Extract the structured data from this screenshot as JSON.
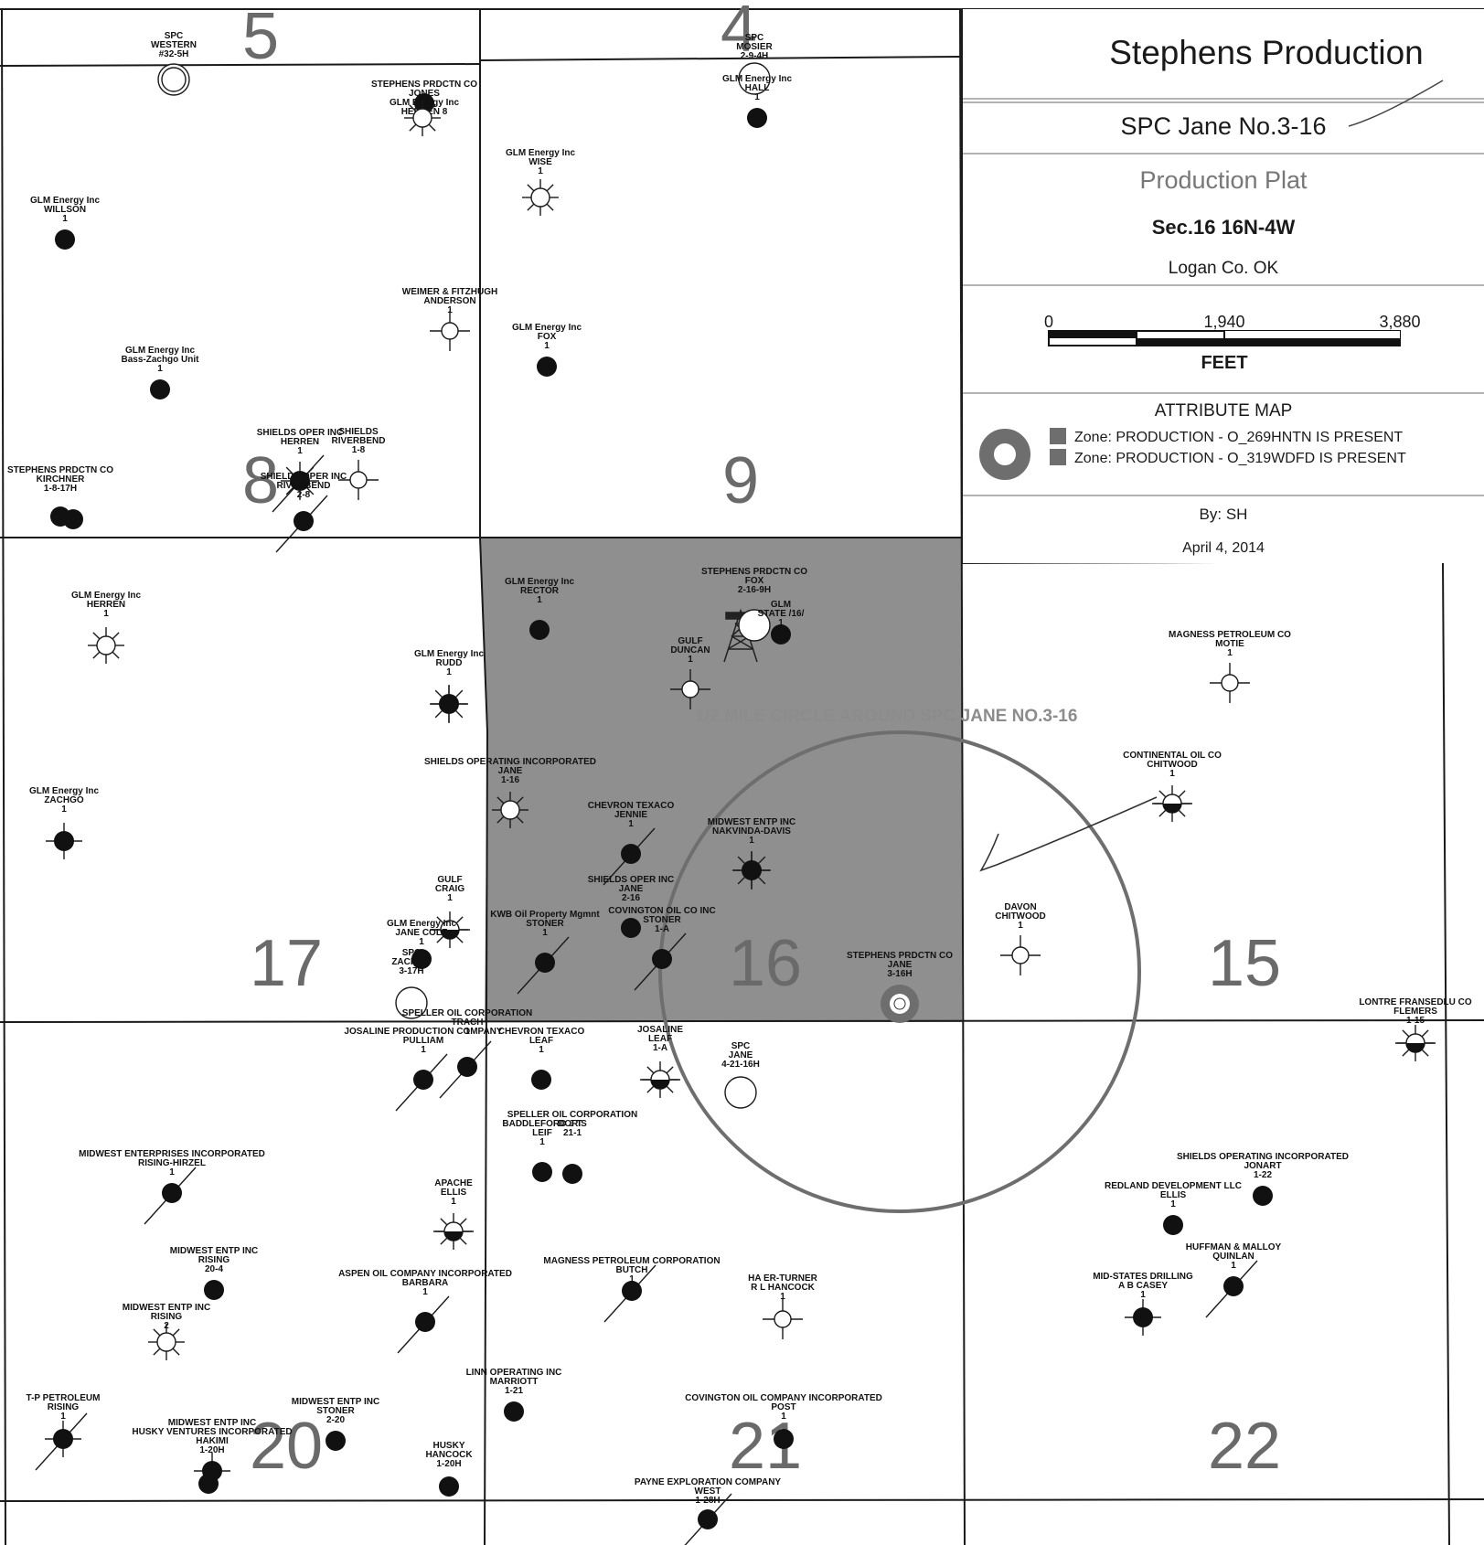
{
  "title_block": {
    "company": "Stephens Production",
    "well": "SPC Jane No.3-16",
    "plat_type": "Production Plat",
    "location": "Sec.16 16N-4W",
    "county": "Logan Co. OK",
    "scale": {
      "tick_0": "0",
      "tick_mid": "1,940",
      "tick_max": "3,880",
      "units": "FEET"
    },
    "legend_title": "ATTRIBUTE MAP",
    "legend_items": [
      "Zone: PRODUCTION - O_269HNTN IS PRESENT",
      "Zone: PRODUCTION - O_319WDFD IS PRESENT"
    ],
    "author": "By: SH",
    "date": "April 4, 2014"
  },
  "circle_label": "1/2 MILE CIRCLE AROUND SPC JANE NO.3-16",
  "sections": [
    "5",
    "4",
    "8",
    "9",
    "17",
    "16",
    "15",
    "20",
    "21",
    "22"
  ],
  "colors": {
    "highlight": "#8f8f8f",
    "ring": "#6e6e6e",
    "line": "#1a1a1a"
  },
  "wells": [
    {
      "label": "SPC|WESTERN|#32-5H",
      "symbol": "location"
    },
    {
      "label": "STEPHENS PRDCTN CO|JONES|GLM Energy Inc|HERREN 8",
      "symbol": "oil"
    },
    {
      "label": "",
      "symbol": "dry"
    },
    {
      "label": "SPC|MOSIER|2-9-4H",
      "symbol": "location"
    },
    {
      "label": "GLM Energy Inc|HALL|1",
      "symbol": "oil"
    },
    {
      "label": "GLM Energy Inc|WISE|1",
      "symbol": "dry"
    },
    {
      "label": "GLM Energy Inc|WILLSON|1",
      "symbol": "oil"
    },
    {
      "label": "WEIMER & FITZHUGH|ANDERSON|1",
      "symbol": "plugged"
    },
    {
      "label": "GLM Energy Inc|FOX|1",
      "symbol": "oil"
    },
    {
      "label": "GLM Energy Inc|Bass-Zachgo Unit|1",
      "symbol": "oil"
    },
    {
      "label": "SHIELDS OPER INC|HERREN|1",
      "symbol": "oilgas"
    },
    {
      "label": "SHIELDS|RIVERBEND|1-8",
      "symbol": "plugged"
    },
    {
      "label": "SHIELDS OPER INC|RIVERBEND|2-8",
      "symbol": "oil"
    },
    {
      "label": "STEPHENS PRDCTN CO|KIRCHNER|1-8-17H",
      "symbol": "oil"
    },
    {
      "label": "",
      "symbol": "oil"
    },
    {
      "label": "GLM Energy Inc|RECTOR|1",
      "symbol": "oil"
    },
    {
      "label": "STEPHENS PRDCTN CO|FOX|2-16-9H",
      "symbol": "location"
    },
    {
      "label": "GLM|STATE /16/|1",
      "symbol": "oil"
    },
    {
      "label": "GULF|DUNCAN|1",
      "symbol": "plugged"
    },
    {
      "label": "GLM Energy Inc|HERREN|1",
      "symbol": "dry"
    },
    {
      "label": "GLM Energy Inc|RUDD|1",
      "symbol": "oilgas"
    },
    {
      "label": "MAGNESS PETROLEUM CO|MOTIE|1",
      "symbol": "plugged"
    },
    {
      "label": "SHIELDS OPERATING INCORPORATED|JANE|1-16",
      "symbol": "dry"
    },
    {
      "label": "CHEVRON TEXACO|JENNIE|1",
      "symbol": "oil"
    },
    {
      "label": "MIDWEST ENTP INC|NAKVINDA-DAVIS|1",
      "symbol": "oilgas"
    },
    {
      "label": "CONTINENTAL OIL CO|CHITWOOD|1",
      "symbol": "half"
    },
    {
      "label": "GLM Energy Inc|ZACHGO|1",
      "symbol": "oil"
    },
    {
      "label": "SHIELDS OPER INC|JANE|2-16",
      "symbol": "oil"
    },
    {
      "label": "COVINGTON OIL CO INC|STONER|1-A",
      "symbol": "oil"
    },
    {
      "label": "GULF|CRAIG|1",
      "symbol": "half"
    },
    {
      "label": "GLM Energy Inc|JANE COLE|1",
      "symbol": "oil"
    },
    {
      "label": "KWB Oil Property Mgmnt|STONER|1",
      "symbol": "oil"
    },
    {
      "label": "STEPHENS PRDCTN CO|JANE|3-16H",
      "symbol": "target"
    },
    {
      "label": "DAVON|CHITWOOD|1",
      "symbol": "plugged"
    },
    {
      "label": "SPC|ZACHGO|3-17H",
      "symbol": "location"
    },
    {
      "label": "LONTRE FRANSEDLU CO|FLEMERS|1-15",
      "symbol": "half"
    },
    {
      "label": "SPELLER OIL CORPORATION|TRACH|1",
      "symbol": "oil"
    },
    {
      "label": "JOSALINE PRODUCTION COMPANY|PULLIAM|1",
      "symbol": "oil"
    },
    {
      "label": "CHEVRON TEXACO|LEAF|1",
      "symbol": "oil"
    },
    {
      "label": "JOSALINE|LEAF|1-A",
      "symbol": "half"
    },
    {
      "label": "SPC|JANE|4-21-16H",
      "symbol": "location"
    },
    {
      "label": "BADDLEFORD J T|LEIF|1",
      "symbol": "oil"
    },
    {
      "label": "SPELLER OIL CORPORATION|DORIS|21-1",
      "symbol": "oil"
    },
    {
      "label": "MIDWEST ENTERPRISES INCORPORATED|RISING-HIRZEL|1",
      "symbol": "oil"
    },
    {
      "label": "SHIELDS OPERATING INCORPORATED|JONART|1-22",
      "symbol": "oil"
    },
    {
      "label": "REDLAND DEVELOPMENT LLC|ELLIS|1",
      "symbol": "oil"
    },
    {
      "label": "APACHE|ELLIS|1",
      "symbol": "half"
    },
    {
      "label": "MIDWEST ENTP INC|RISING|20-4",
      "symbol": "oil"
    },
    {
      "label": "MAGNESS PETROLEUM CORPORATION|BUTCH|1",
      "symbol": "oil"
    },
    {
      "label": "HUFFMAN & MALLOY|QUINLAN|1",
      "symbol": "oil"
    },
    {
      "label": "ASPEN OIL COMPANY INCORPORATED|BARBARA|1",
      "symbol": "oil"
    },
    {
      "label": "HA ER-TURNER|R L HANCOCK|1",
      "symbol": "plugged"
    },
    {
      "label": "MID-STATES DRILLING|A B CASEY|1",
      "symbol": "oil"
    },
    {
      "label": "MIDWEST ENTP INC|RISING|2",
      "symbol": "dry"
    },
    {
      "label": "LINN OPERATING INC|MARRIOTT|1-21",
      "symbol": "oil"
    },
    {
      "label": "T-P PETROLEUM|RISING|1",
      "symbol": "oil"
    },
    {
      "label": "MIDWEST ENTP INC|STONER|2-20",
      "symbol": "oil"
    },
    {
      "label": "COVINGTON OIL COMPANY INCORPORATED|POST|1",
      "symbol": "oil"
    },
    {
      "label": "MIDWEST ENTP INC|HUSKY VENTURES INCORPORATED|HAKIMI|1-20H",
      "symbol": "oil"
    },
    {
      "label": "",
      "symbol": "oil"
    },
    {
      "label": "HUSKY|HANCOCK|1-20H",
      "symbol": "oil"
    },
    {
      "label": "PAYNE EXPLORATION COMPANY|WEST|1-28H",
      "symbol": "oil"
    }
  ]
}
